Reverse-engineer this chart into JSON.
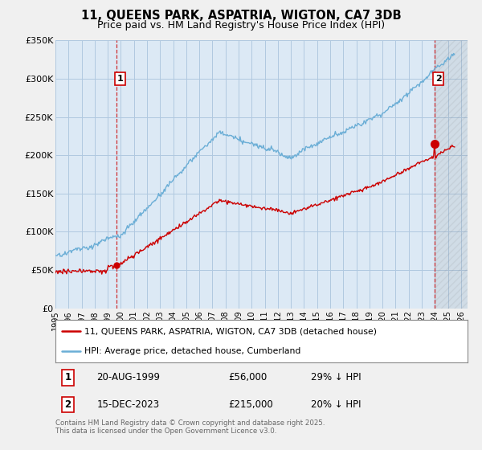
{
  "title": "11, QUEENS PARK, ASPATRIA, WIGTON, CA7 3DB",
  "subtitle": "Price paid vs. HM Land Registry's House Price Index (HPI)",
  "ylim": [
    0,
    350000
  ],
  "yticks": [
    0,
    50000,
    100000,
    150000,
    200000,
    250000,
    300000,
    350000
  ],
  "ytick_labels": [
    "£0",
    "£50K",
    "£100K",
    "£150K",
    "£200K",
    "£250K",
    "£300K",
    "£350K"
  ],
  "xlim_start": 1995.0,
  "xlim_end": 2026.5,
  "bg_color": "#f0f0f0",
  "plot_bg_color": "#dce9f5",
  "grid_color": "#b0c8e0",
  "hpi_color": "#6baed6",
  "price_color": "#cc0000",
  "marker1_x": 1999.64,
  "marker1_y": 56000,
  "marker2_x": 2023.96,
  "marker2_y": 215000,
  "legend_line1": "11, QUEENS PARK, ASPATRIA, WIGTON, CA7 3DB (detached house)",
  "legend_line2": "HPI: Average price, detached house, Cumberland",
  "footnote": "Contains HM Land Registry data © Crown copyright and database right 2025.\nThis data is licensed under the Open Government Licence v3.0.",
  "title_fontsize": 10.5,
  "subtitle_fontsize": 9
}
